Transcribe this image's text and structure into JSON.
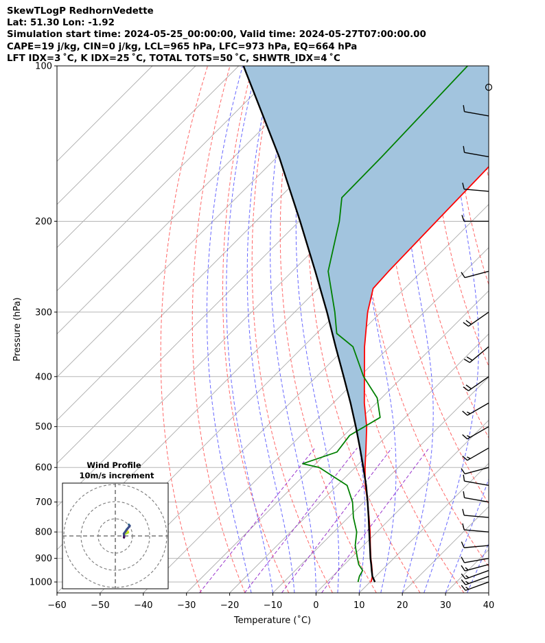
{
  "header": {
    "line1": "SkewTLogP RedhornVedette",
    "line2": "Lat: 51.30   Lon: -1.92",
    "line3": "Simulation start time: 2024-05-25_00:00:00, Valid time: 2024-05-27T07:00:00.00",
    "line4": "CAPE=19 j/kg, CIN=0 j/kg, LCL=965 hPa, LFC=973 hPa, EQ=664 hPa",
    "line5": "LFT IDX=3 ˚C, K IDX=25 ˚C, TOTAL TOTS=50 ˚C, SHWTR_IDX=4 ˚C"
  },
  "chart_data": {
    "type": "line",
    "title": "SkewTLogP RedhornVedette",
    "xlabel": "Temperature (˚C)",
    "ylabel": "Pressure (hPa)",
    "xlim": [
      -60,
      40
    ],
    "ylim": [
      1050,
      100
    ],
    "y_scale": "log",
    "skew": "45 degrees",
    "grid": true,
    "x_ticks": [
      -60,
      -50,
      -40,
      -30,
      -20,
      -10,
      0,
      10,
      20,
      30,
      40
    ],
    "x_tick_labels": [
      "−60",
      "−50",
      "−40",
      "−30",
      "−20",
      "−10",
      "0",
      "10",
      "20",
      "30",
      "40"
    ],
    "y_ticks": [
      1000,
      900,
      800,
      700,
      600,
      500,
      400,
      300,
      200,
      100
    ],
    "y_tick_labels": [
      "1000",
      "900",
      "800",
      "700",
      "600",
      "500",
      "400",
      "300",
      "200",
      "100"
    ],
    "series": [
      {
        "role": "temperature",
        "color": "#ff0000",
        "p": [
          1000,
          975,
          950,
          925,
          900,
          850,
          800,
          750,
          700,
          650,
          600,
          550,
          500,
          450,
          400,
          350,
          300,
          270,
          250,
          200,
          150,
          125,
          110,
          100
        ],
        "t": [
          10.2,
          9.2,
          7.8,
          6.3,
          4.7,
          1.6,
          -1.6,
          -5.2,
          -9.1,
          -13.5,
          -17.7,
          -22.0,
          -26.8,
          -32.8,
          -38.9,
          -45.8,
          -53.1,
          -57.3,
          -57.7,
          -58.2,
          -58.8,
          -57.6,
          -58.6,
          -59.1
        ]
      },
      {
        "role": "dewpoint",
        "color": "#008000",
        "p": [
          1000,
          975,
          950,
          925,
          900,
          850,
          800,
          750,
          700,
          650,
          600,
          590,
          560,
          520,
          480,
          440,
          400,
          350,
          330,
          300,
          250,
          200,
          180,
          150,
          100
        ],
        "t": [
          7.2,
          6.2,
          5.6,
          3.3,
          1.6,
          -1.9,
          -4.7,
          -8.8,
          -12.6,
          -17.7,
          -28.3,
          -33.0,
          -27.8,
          -28.7,
          -25.8,
          -31.0,
          -39.1,
          -48.5,
          -55.3,
          -60.7,
          -71.7,
          -80.7,
          -85.6,
          -85.8,
          -87.0
        ]
      },
      {
        "role": "parcel",
        "color": "#000000",
        "p": [
          1000,
          975,
          950,
          925,
          900,
          850,
          800,
          750,
          700,
          650,
          600,
          550,
          500,
          450,
          400,
          350,
          300,
          250,
          200,
          150,
          100
        ],
        "t": [
          11.1,
          9.2,
          7.7,
          6.2,
          4.6,
          1.5,
          -1.8,
          -5.3,
          -9.1,
          -13.3,
          -18.1,
          -23.4,
          -29.3,
          -36.0,
          -43.7,
          -52.5,
          -62.5,
          -74.7,
          -89.8,
          -109.6,
          -138.9
        ]
      }
    ],
    "shaded_region": {
      "between": [
        "temperature",
        "parcel"
      ],
      "color": "#a2c4de"
    },
    "reference_lines": {
      "isotherms_color": "#aaaaaa",
      "dry_adiabats_color": "#ff6666",
      "moist_adiabats_color": "#6666ff",
      "mixing_ratio_color": "#9933cc"
    },
    "wind_barbs": {
      "p": [
        1000,
        975,
        950,
        925,
        900,
        850,
        800,
        750,
        700,
        650,
        600,
        550,
        500,
        450,
        400,
        350,
        300,
        250,
        200,
        175,
        150,
        125,
        110
      ],
      "speed_kt": [
        15,
        15,
        15,
        15,
        10,
        10,
        10,
        10,
        10,
        10,
        10,
        15,
        15,
        15,
        20,
        20,
        20,
        10,
        10,
        10,
        10,
        10,
        0
      ],
      "direction_deg": [
        250,
        250,
        250,
        255,
        260,
        265,
        275,
        275,
        280,
        280,
        255,
        240,
        240,
        240,
        235,
        230,
        235,
        255,
        270,
        275,
        280,
        280,
        0
      ]
    },
    "hodograph": {
      "title": "Wind Profile",
      "subtitle": "10m/s increment",
      "rings_ms": [
        10,
        20,
        30
      ]
    }
  }
}
